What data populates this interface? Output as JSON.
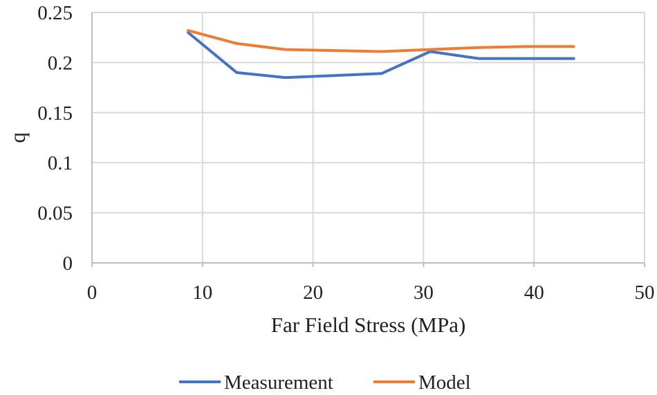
{
  "chart_data": {
    "type": "line",
    "title": "",
    "xlabel": "Far Field Stress (MPa)",
    "ylabel": "q",
    "xlim": [
      0,
      50
    ],
    "ylim": [
      0,
      0.25
    ],
    "x_ticks": [
      0,
      10,
      20,
      30,
      40,
      50
    ],
    "y_ticks": [
      0,
      0.05,
      0.1,
      0.15,
      0.2,
      0.25
    ],
    "x_tick_labels": [
      "0",
      "10",
      "20",
      "30",
      "40",
      "50"
    ],
    "y_tick_labels": [
      "0",
      "0.05",
      "0.1",
      "0.15",
      "0.2",
      "0.25"
    ],
    "grid": "vertical-and-horizontal",
    "legend_position": "bottom-center",
    "series": [
      {
        "name": "Measurement",
        "color": "#4472c4",
        "x": [
          8.7,
          13.1,
          17.5,
          26.2,
          30.6,
          35.0,
          39.3,
          43.6
        ],
        "values": [
          0.23,
          0.19,
          0.185,
          0.189,
          0.211,
          0.204,
          0.204,
          0.204
        ]
      },
      {
        "name": "Model",
        "color": "#ed7d31",
        "x": [
          8.7,
          13.1,
          17.5,
          26.2,
          30.6,
          35.0,
          39.3,
          43.6
        ],
        "values": [
          0.232,
          0.219,
          0.213,
          0.211,
          0.213,
          0.215,
          0.216,
          0.216
        ]
      }
    ]
  }
}
